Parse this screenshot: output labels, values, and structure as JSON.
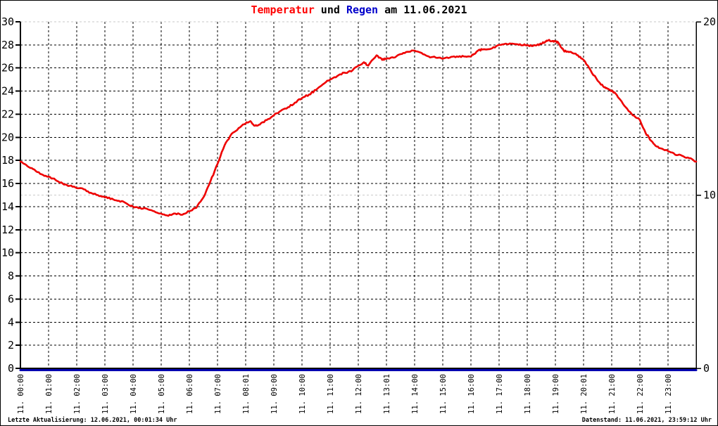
{
  "title": {
    "segments": [
      {
        "text": "Temperatur",
        "color": "#ff0000"
      },
      {
        "text": " und ",
        "color": "#000000"
      },
      {
        "text": "Regen",
        "color": "#0000cc"
      },
      {
        "text": " am 11.06.2021",
        "color": "#000000"
      }
    ]
  },
  "footer": {
    "left": "Letzte Aktualisierung: 12.06.2021, 00:01:34 Uhr",
    "right": "Datenstand: 11.06.2021, 23:59:12 Uhr"
  },
  "chart_data": {
    "type": "line",
    "title": "Temperatur und Regen am 11.06.2021",
    "grid": true,
    "legend": "none",
    "left_axis": {
      "min": 0,
      "max": 30,
      "tick_step": 2
    },
    "right_axis": {
      "min": 0,
      "max": 20,
      "ticks": [
        0,
        10,
        20
      ],
      "grid_levels": [
        10,
        20
      ]
    },
    "x_axis": {
      "hours_min": 0,
      "hours_max": 24,
      "tick_labels": [
        "11. 00:00",
        "11. 01:00",
        "11. 02:00",
        "11. 03:00",
        "11. 04:00",
        "11. 05:00",
        "11. 06:00",
        "11. 07:00",
        "11. 08:01",
        "11. 09:00",
        "11. 10:00",
        "11. 11:00",
        "11. 12:00",
        "11. 13:01",
        "11. 14:00",
        "11. 15:00",
        "11. 16:00",
        "11. 17:00",
        "11. 18:00",
        "11. 19:00",
        "11. 20:01",
        "11. 21:00",
        "11. 22:00",
        "11. 23:00"
      ]
    },
    "colors": {
      "temperature": "#ee0000",
      "rain": "#0000b0",
      "grid": "#000000",
      "grid_secondary": "#c9c9c9",
      "background": "#ffffff",
      "text": "#000000"
    },
    "series": [
      {
        "name": "Temperatur",
        "axis": "left",
        "color": "#ee0000",
        "points": [
          [
            0,
            17.9
          ],
          [
            0.25,
            17.5
          ],
          [
            0.5,
            17.2
          ],
          [
            0.75,
            16.8
          ],
          [
            1,
            16.6
          ],
          [
            1.25,
            16.3
          ],
          [
            1.5,
            16.0
          ],
          [
            1.75,
            15.8
          ],
          [
            2,
            15.6
          ],
          [
            2.25,
            15.5
          ],
          [
            2.5,
            15.2
          ],
          [
            2.75,
            15.0
          ],
          [
            3,
            14.8
          ],
          [
            3.25,
            14.7
          ],
          [
            3.5,
            14.5
          ],
          [
            3.75,
            14.3
          ],
          [
            4,
            14.0
          ],
          [
            4.25,
            13.9
          ],
          [
            4.5,
            13.8
          ],
          [
            4.75,
            13.6
          ],
          [
            5,
            13.4
          ],
          [
            5.25,
            13.2
          ],
          [
            5.5,
            13.4
          ],
          [
            5.75,
            13.3
          ],
          [
            6,
            13.6
          ],
          [
            6.25,
            13.9
          ],
          [
            6.5,
            14.8
          ],
          [
            6.75,
            16.2
          ],
          [
            7,
            17.7
          ],
          [
            7.25,
            19.3
          ],
          [
            7.5,
            20.3
          ],
          [
            7.75,
            20.8
          ],
          [
            8,
            21.2
          ],
          [
            8.17,
            21.4
          ],
          [
            8.33,
            21.0
          ],
          [
            8.5,
            21.1
          ],
          [
            8.75,
            21.5
          ],
          [
            9,
            21.9
          ],
          [
            9.25,
            22.3
          ],
          [
            9.5,
            22.6
          ],
          [
            9.75,
            23.0
          ],
          [
            10,
            23.4
          ],
          [
            10.25,
            23.7
          ],
          [
            10.5,
            24.1
          ],
          [
            10.75,
            24.6
          ],
          [
            11,
            25.0
          ],
          [
            11.25,
            25.3
          ],
          [
            11.5,
            25.6
          ],
          [
            11.75,
            25.7
          ],
          [
            12,
            26.2
          ],
          [
            12.2,
            26.5
          ],
          [
            12.35,
            26.2
          ],
          [
            12.65,
            27.1
          ],
          [
            12.85,
            26.7
          ],
          [
            13,
            26.8
          ],
          [
            13.25,
            26.9
          ],
          [
            13.5,
            27.2
          ],
          [
            13.75,
            27.4
          ],
          [
            14,
            27.5
          ],
          [
            14.25,
            27.3
          ],
          [
            14.5,
            27.0
          ],
          [
            14.75,
            26.9
          ],
          [
            15,
            26.8
          ],
          [
            15.25,
            26.9
          ],
          [
            15.5,
            27.0
          ],
          [
            15.75,
            27.0
          ],
          [
            16,
            27.0
          ],
          [
            16.1,
            27.2
          ],
          [
            16.25,
            27.5
          ],
          [
            16.4,
            27.6
          ],
          [
            16.75,
            27.7
          ],
          [
            17,
            28.0
          ],
          [
            17.3,
            28.05
          ],
          [
            17.5,
            28.1
          ],
          [
            17.7,
            28.0
          ],
          [
            17.9,
            28.05
          ],
          [
            18,
            28.0
          ],
          [
            18.2,
            27.9
          ],
          [
            18.35,
            28.0
          ],
          [
            18.5,
            28.1
          ],
          [
            18.65,
            28.3
          ],
          [
            18.75,
            28.4
          ],
          [
            18.9,
            28.35
          ],
          [
            19,
            28.3
          ],
          [
            19.1,
            28.2
          ],
          [
            19.2,
            27.8
          ],
          [
            19.3,
            27.5
          ],
          [
            19.4,
            27.4
          ],
          [
            19.6,
            27.3
          ],
          [
            19.8,
            27.1
          ],
          [
            20,
            26.7
          ],
          [
            20.25,
            25.8
          ],
          [
            20.5,
            24.9
          ],
          [
            20.7,
            24.4
          ],
          [
            20.85,
            24.2
          ],
          [
            21,
            24.0
          ],
          [
            21.1,
            23.9
          ],
          [
            21.25,
            23.4
          ],
          [
            21.5,
            22.6
          ],
          [
            21.75,
            21.9
          ],
          [
            22,
            21.5
          ],
          [
            22.2,
            20.4
          ],
          [
            22.4,
            19.7
          ],
          [
            22.6,
            19.2
          ],
          [
            22.8,
            19.0
          ],
          [
            23,
            18.8
          ],
          [
            23.25,
            18.5
          ],
          [
            23.5,
            18.4
          ],
          [
            23.75,
            18.2
          ],
          [
            24,
            17.9
          ]
        ]
      },
      {
        "name": "Regen",
        "axis": "right",
        "color": "#0000b0",
        "points": [
          [
            0,
            0
          ],
          [
            24,
            0
          ]
        ]
      }
    ]
  }
}
